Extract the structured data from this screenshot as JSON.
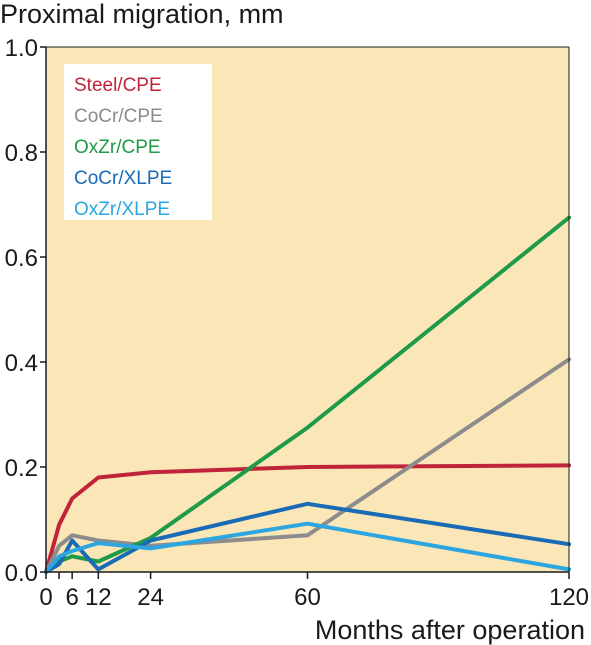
{
  "chart_data": {
    "type": "line",
    "title": "Proximal migration, mm",
    "xlabel": "Months after operation",
    "ylabel": "Proximal migration, mm",
    "xlim": [
      0,
      120
    ],
    "ylim": [
      0,
      1.0
    ],
    "x_ticks": [
      0,
      3,
      6,
      12,
      24,
      60,
      120
    ],
    "x_tick_labels": [
      "0",
      "",
      "6",
      "12",
      "24",
      "60",
      "120"
    ],
    "y_ticks": [
      0,
      0.2,
      0.4,
      0.6,
      0.8,
      1.0
    ],
    "y_tick_labels": [
      "0.0",
      "0.2",
      "0.4",
      "0.6",
      "0.8",
      "1.0"
    ],
    "grid": false,
    "legend_position": "top-left",
    "background_color": "#fbe6b8",
    "series": [
      {
        "name": "Steel/CPE",
        "color": "#c0243b",
        "x": [
          0,
          3,
          6,
          12,
          24,
          60,
          120
        ],
        "y": [
          0,
          0.09,
          0.14,
          0.18,
          0.19,
          0.2,
          0.203
        ]
      },
      {
        "name": "CoCr/CPE",
        "color": "#8c8c8c",
        "x": [
          0,
          3,
          6,
          12,
          24,
          60,
          120
        ],
        "y": [
          0,
          0.05,
          0.07,
          0.06,
          0.05,
          0.07,
          0.405
        ]
      },
      {
        "name": "OxZr/CPE",
        "color": "#1f9a48",
        "x": [
          0,
          3,
          6,
          12,
          24,
          60,
          120
        ],
        "y": [
          0,
          0.02,
          0.03,
          0.02,
          0.065,
          0.275,
          0.675
        ]
      },
      {
        "name": "CoCr/XLPE",
        "color": "#1a6bb5",
        "x": [
          0,
          3,
          6,
          12,
          24,
          60,
          120
        ],
        "y": [
          0,
          0.015,
          0.06,
          0.005,
          0.06,
          0.13,
          0.053
        ]
      },
      {
        "name": "OxZr/XLPE",
        "color": "#2ba6e0",
        "x": [
          0,
          3,
          6,
          12,
          24,
          60,
          120
        ],
        "y": [
          0,
          0.03,
          0.04,
          0.055,
          0.045,
          0.092,
          0.005
        ]
      }
    ]
  }
}
